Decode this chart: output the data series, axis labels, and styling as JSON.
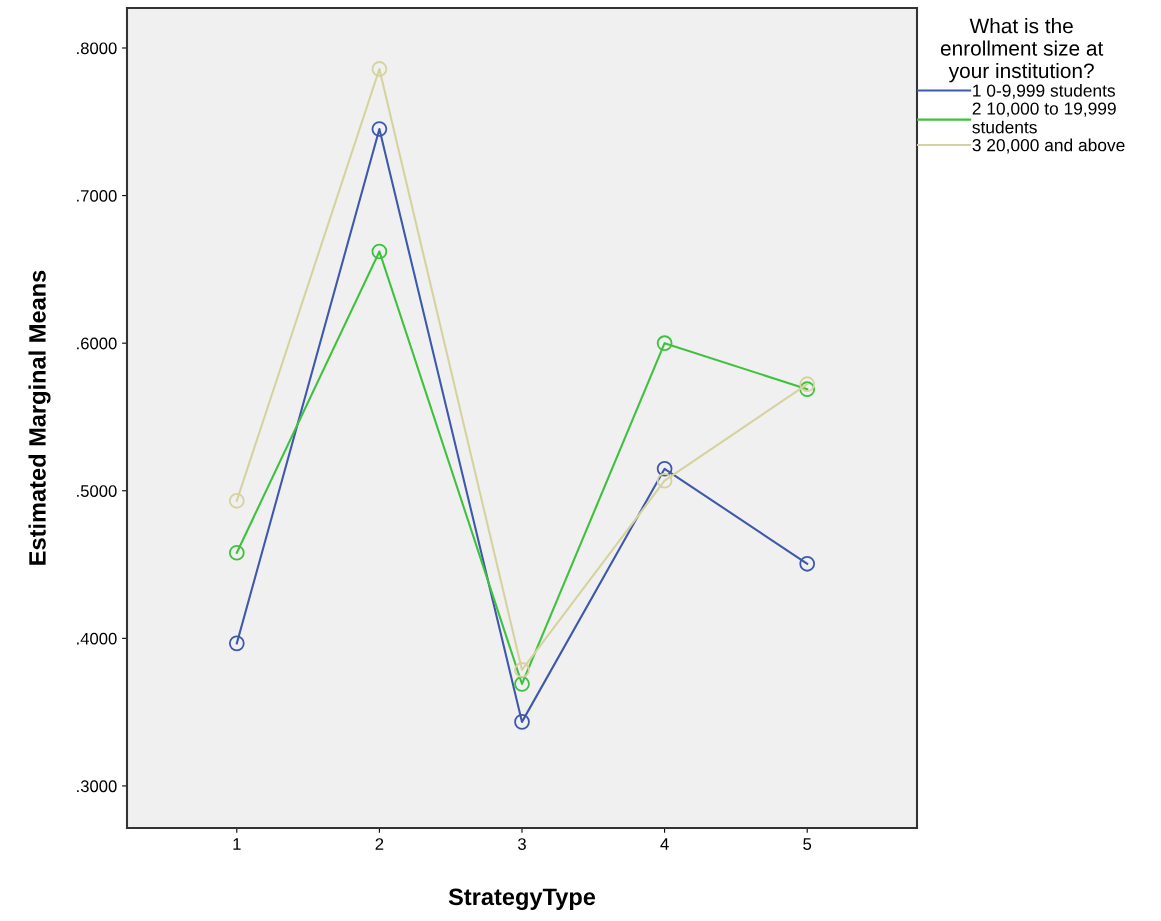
{
  "chart_data": {
    "type": "line",
    "xlabel": "StrategyType",
    "ylabel": "Estimated Marginal Means",
    "legend_title": "What is the\nenrollment size at\nyour institution?",
    "x": [
      1,
      2,
      3,
      4,
      5
    ],
    "xlim": [
      0.23,
      5.77
    ],
    "xticks": [
      1,
      2,
      3,
      4,
      5
    ],
    "ylim": [
      0.2715,
      0.8271
    ],
    "yticks": [
      {
        "value": 0.3,
        "label": ".3000"
      },
      {
        "value": 0.4,
        "label": ".4000"
      },
      {
        "value": 0.5,
        "label": ".5000"
      },
      {
        "value": 0.6,
        "label": ".6000"
      },
      {
        "value": 0.7,
        "label": ".7000"
      },
      {
        "value": 0.8,
        "label": ".8000"
      }
    ],
    "marker": "circle",
    "line_style": "solid",
    "grid": false,
    "legend": "top right",
    "series": [
      {
        "name": "1 0-9,999 students",
        "color": "#3e58ac",
        "values": [
          0.3966,
          0.7451,
          0.3434,
          0.5149,
          0.4505
        ]
      },
      {
        "name": "2 10,000 to 19,999\nstudents",
        "color": "#3ec23e",
        "values": [
          0.458,
          0.6621,
          0.3691,
          0.6,
          0.5688
        ]
      },
      {
        "name": "3 20,000 and above",
        "color": "#d6d2a0",
        "values": [
          0.4932,
          0.7858,
          0.3786,
          0.5068,
          0.5722
        ]
      }
    ]
  }
}
